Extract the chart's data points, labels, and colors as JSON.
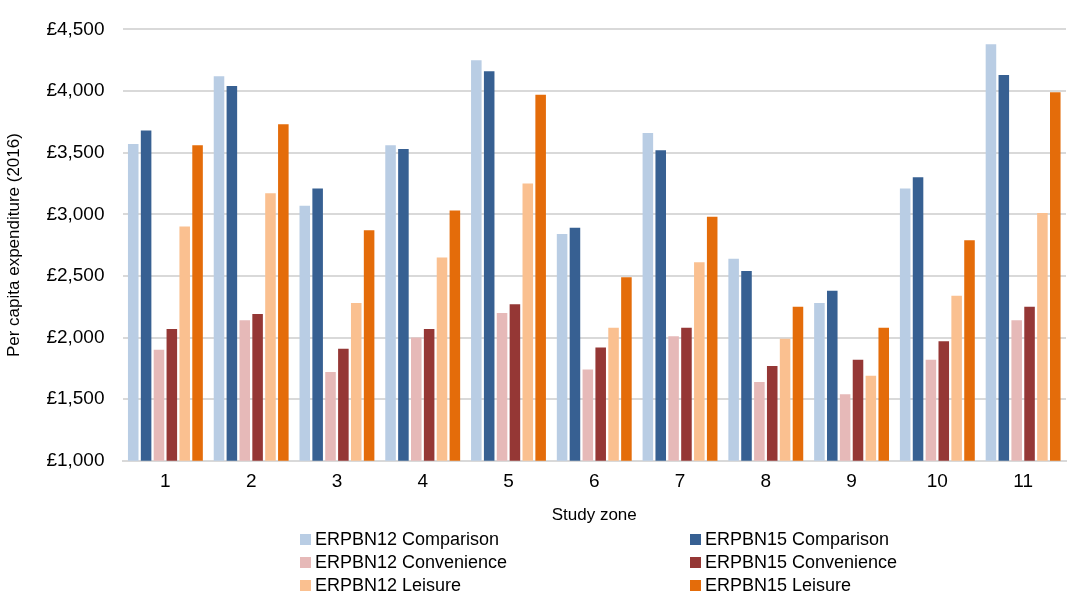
{
  "chart_data": {
    "type": "bar",
    "xlabel": "Study zone",
    "ylabel": "Per capita expenditure (2016)",
    "categories": [
      "1",
      "2",
      "3",
      "4",
      "5",
      "6",
      "7",
      "8",
      "9",
      "10",
      "11"
    ],
    "series": [
      {
        "name": "ERPBN12 Comparison",
        "color": "#b9cde4",
        "values": [
          3570,
          4120,
          3070,
          3560,
          4250,
          2840,
          3660,
          2640,
          2280,
          3210,
          4380
        ]
      },
      {
        "name": "ERPBN15 Comparison",
        "color": "#376092",
        "values": [
          3680,
          4040,
          3210,
          3530,
          4160,
          2890,
          3520,
          2540,
          2380,
          3300,
          4130
        ]
      },
      {
        "name": "ERPBN12 Convenience",
        "color": "#e6b9b8",
        "values": [
          1900,
          2140,
          1720,
          2000,
          2200,
          1740,
          2010,
          1640,
          1540,
          1820,
          2140
        ]
      },
      {
        "name": "ERPBN15 Convenience",
        "color": "#953735",
        "values": [
          2070,
          2190,
          1910,
          2070,
          2270,
          1920,
          2080,
          1770,
          1820,
          1970,
          2250
        ]
      },
      {
        "name": "ERPBN12 Leisure",
        "color": "#fac090",
        "values": [
          2900,
          3170,
          2280,
          2650,
          3250,
          2080,
          2610,
          1990,
          1690,
          2340,
          3010
        ]
      },
      {
        "name": "ERPBN15 Leisure",
        "color": "#e46c0a",
        "values": [
          3560,
          3730,
          2870,
          3030,
          3970,
          2490,
          2980,
          2250,
          2080,
          2790,
          3990
        ]
      }
    ],
    "ylim": [
      1000,
      4500
    ],
    "yticks": [
      {
        "value": 1000,
        "label": "£1,000"
      },
      {
        "value": 1500,
        "label": "£1,500"
      },
      {
        "value": 2000,
        "label": "£2,000"
      },
      {
        "value": 2500,
        "label": "£2,500"
      },
      {
        "value": 3000,
        "label": "£3,000"
      },
      {
        "value": 3500,
        "label": "£3,500"
      },
      {
        "value": 4000,
        "label": "£4,000"
      },
      {
        "value": 4500,
        "label": "£4,500"
      }
    ],
    "grid": "y",
    "legend": "bottom"
  }
}
